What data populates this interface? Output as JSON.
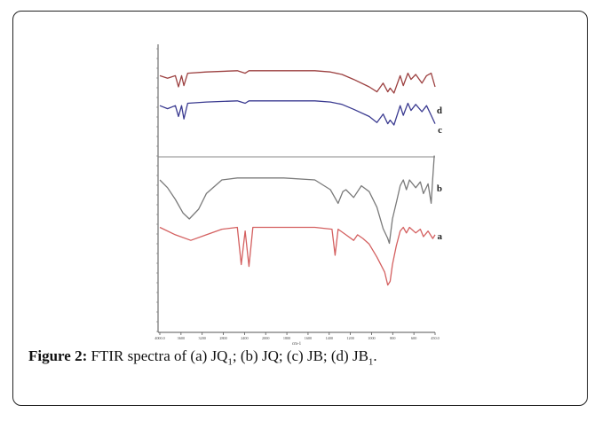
{
  "figure": {
    "caption_label": "Figure 2:",
    "caption_parts": [
      {
        "t": " FTIR spectra of (a) JQ"
      },
      {
        "sub": "1"
      },
      {
        "t": "; (b) JQ; (c) JB; (d) JB"
      },
      {
        "sub": "1"
      },
      {
        "t": "."
      }
    ]
  },
  "chart_data": {
    "type": "line",
    "xlabel": "cm-1",
    "ylabel": "",
    "xlim": [
      4000,
      450
    ],
    "x_reversed": true,
    "x_ticks": [
      "4000.0",
      "3600",
      "3200",
      "2800",
      "2400",
      "2000",
      "1800",
      "1600",
      "1400",
      "1200",
      "1000",
      "800",
      "600",
      "450.0"
    ],
    "grid": false,
    "colors": {
      "a": "#d46060",
      "b": "#7a7a7a",
      "c": "#3a3a90",
      "d": "#9c4040"
    },
    "series": [
      {
        "name": "d",
        "points": [
          [
            4000,
            0.78
          ],
          [
            3900,
            0.74
          ],
          [
            3800,
            0.78
          ],
          [
            3760,
            0.6
          ],
          [
            3720,
            0.78
          ],
          [
            3690,
            0.62
          ],
          [
            3640,
            0.82
          ],
          [
            3400,
            0.84
          ],
          [
            3000,
            0.86
          ],
          [
            2900,
            0.82
          ],
          [
            2850,
            0.86
          ],
          [
            2000,
            0.86
          ],
          [
            1800,
            0.84
          ],
          [
            1650,
            0.8
          ],
          [
            1500,
            0.72
          ],
          [
            1300,
            0.6
          ],
          [
            1200,
            0.52
          ],
          [
            1120,
            0.66
          ],
          [
            1060,
            0.52
          ],
          [
            1030,
            0.58
          ],
          [
            980,
            0.5
          ],
          [
            900,
            0.78
          ],
          [
            860,
            0.62
          ],
          [
            800,
            0.82
          ],
          [
            760,
            0.72
          ],
          [
            700,
            0.8
          ],
          [
            620,
            0.66
          ],
          [
            560,
            0.78
          ],
          [
            500,
            0.82
          ],
          [
            450,
            0.6
          ]
        ]
      },
      {
        "name": "c",
        "points": [
          [
            4000,
            0.6
          ],
          [
            3900,
            0.55
          ],
          [
            3800,
            0.6
          ],
          [
            3760,
            0.42
          ],
          [
            3720,
            0.6
          ],
          [
            3690,
            0.38
          ],
          [
            3640,
            0.64
          ],
          [
            3400,
            0.66
          ],
          [
            3000,
            0.68
          ],
          [
            2900,
            0.64
          ],
          [
            2850,
            0.68
          ],
          [
            2000,
            0.68
          ],
          [
            1800,
            0.66
          ],
          [
            1650,
            0.62
          ],
          [
            1500,
            0.54
          ],
          [
            1300,
            0.42
          ],
          [
            1200,
            0.32
          ],
          [
            1120,
            0.46
          ],
          [
            1060,
            0.3
          ],
          [
            1030,
            0.36
          ],
          [
            980,
            0.28
          ],
          [
            900,
            0.6
          ],
          [
            860,
            0.44
          ],
          [
            800,
            0.64
          ],
          [
            760,
            0.52
          ],
          [
            700,
            0.62
          ],
          [
            620,
            0.5
          ],
          [
            560,
            0.6
          ],
          [
            500,
            0.44
          ],
          [
            450,
            0.3
          ]
        ]
      },
      {
        "name": "b",
        "points": [
          [
            4000,
            0.7
          ],
          [
            3900,
            0.62
          ],
          [
            3800,
            0.5
          ],
          [
            3700,
            0.36
          ],
          [
            3620,
            0.3
          ],
          [
            3500,
            0.4
          ],
          [
            3400,
            0.56
          ],
          [
            3200,
            0.7
          ],
          [
            3000,
            0.72
          ],
          [
            2400,
            0.72
          ],
          [
            2000,
            0.7
          ],
          [
            1800,
            0.6
          ],
          [
            1700,
            0.46
          ],
          [
            1640,
            0.58
          ],
          [
            1600,
            0.6
          ],
          [
            1500,
            0.52
          ],
          [
            1400,
            0.64
          ],
          [
            1300,
            0.58
          ],
          [
            1200,
            0.42
          ],
          [
            1120,
            0.2
          ],
          [
            1060,
            0.1
          ],
          [
            1040,
            0.05
          ],
          [
            1000,
            0.3
          ],
          [
            940,
            0.5
          ],
          [
            900,
            0.64
          ],
          [
            860,
            0.7
          ],
          [
            820,
            0.6
          ],
          [
            780,
            0.7
          ],
          [
            700,
            0.62
          ],
          [
            640,
            0.68
          ],
          [
            600,
            0.56
          ],
          [
            540,
            0.66
          ],
          [
            500,
            0.46
          ],
          [
            480,
            0.72
          ],
          [
            460,
            0.95
          ]
        ]
      },
      {
        "name": "a",
        "points": [
          [
            4000,
            0.7
          ],
          [
            3800,
            0.62
          ],
          [
            3600,
            0.56
          ],
          [
            3400,
            0.62
          ],
          [
            3200,
            0.68
          ],
          [
            3000,
            0.7
          ],
          [
            2950,
            0.3
          ],
          [
            2900,
            0.66
          ],
          [
            2850,
            0.28
          ],
          [
            2800,
            0.7
          ],
          [
            2000,
            0.7
          ],
          [
            1780,
            0.68
          ],
          [
            1740,
            0.4
          ],
          [
            1700,
            0.68
          ],
          [
            1600,
            0.62
          ],
          [
            1500,
            0.56
          ],
          [
            1450,
            0.62
          ],
          [
            1380,
            0.58
          ],
          [
            1300,
            0.52
          ],
          [
            1200,
            0.38
          ],
          [
            1100,
            0.22
          ],
          [
            1060,
            0.08
          ],
          [
            1030,
            0.12
          ],
          [
            1000,
            0.3
          ],
          [
            950,
            0.5
          ],
          [
            900,
            0.66
          ],
          [
            860,
            0.7
          ],
          [
            820,
            0.64
          ],
          [
            780,
            0.7
          ],
          [
            700,
            0.64
          ],
          [
            640,
            0.68
          ],
          [
            600,
            0.6
          ],
          [
            540,
            0.66
          ],
          [
            480,
            0.58
          ],
          [
            450,
            0.62
          ]
        ]
      }
    ]
  }
}
